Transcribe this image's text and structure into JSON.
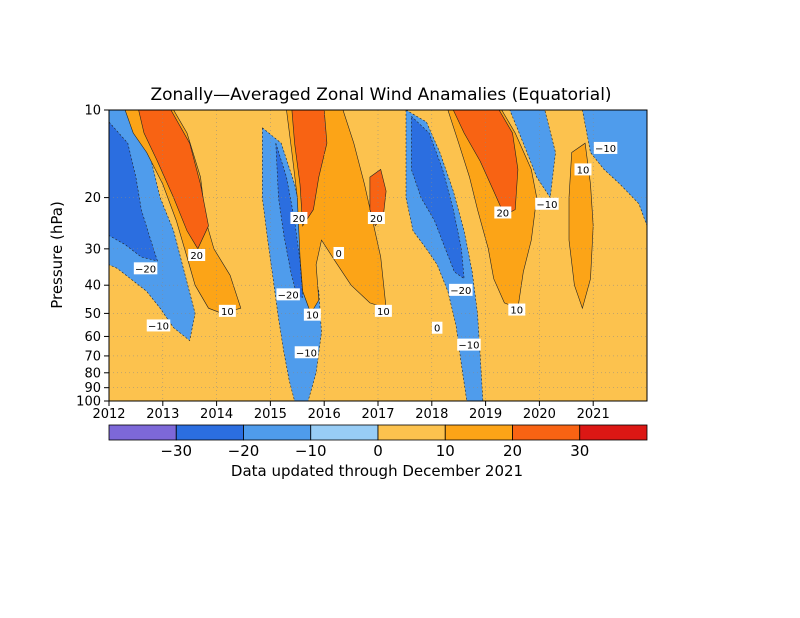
{
  "chart_data": {
    "type": "heatmap",
    "title": "Zonally—Averaged Zonal Wind Anamalies (Equatorial)",
    "ylabel": "Pressure (hPa)",
    "xlabel": "",
    "y_scale": "log",
    "y_axis_reversed": true,
    "x_ticks": [
      "2012",
      "2013",
      "2014",
      "2015",
      "2016",
      "2017",
      "2018",
      "2019",
      "2020",
      "2021"
    ],
    "x_range": [
      2012.0,
      2022.0
    ],
    "y_ticks": [
      10,
      20,
      30,
      40,
      50,
      60,
      70,
      80,
      90,
      100
    ],
    "y_range": [
      10,
      100
    ],
    "grid": true,
    "colorbar": {
      "levels": [
        -40,
        -30,
        -20,
        -10,
        0,
        10,
        20,
        30,
        40
      ],
      "tick_labels": [
        "−30",
        "−20",
        "−10",
        "0",
        "10",
        "20",
        "30"
      ],
      "colors": [
        "#7d68d8",
        "#2b6ee0",
        "#4f9cec",
        "#98cdf6",
        "#fcc24e",
        "#fca417",
        "#f86313",
        "#dc1714"
      ],
      "note": "Data updated through December 2021"
    },
    "contour_labels": [
      {
        "text": "−20",
        "year": 2012.68,
        "p": 35
      },
      {
        "text": "−10",
        "year": 2012.92,
        "p": 55
      },
      {
        "text": "20",
        "year": 2013.63,
        "p": 31.5
      },
      {
        "text": "10",
        "year": 2014.2,
        "p": 49
      },
      {
        "text": "−20",
        "year": 2015.33,
        "p": 43
      },
      {
        "text": "20",
        "year": 2015.53,
        "p": 23.5
      },
      {
        "text": "−10",
        "year": 2015.67,
        "p": 68
      },
      {
        "text": "10",
        "year": 2015.78,
        "p": 50.5
      },
      {
        "text": "0",
        "year": 2016.27,
        "p": 31
      },
      {
        "text": "20",
        "year": 2016.97,
        "p": 23.5
      },
      {
        "text": "10",
        "year": 2017.1,
        "p": 49
      },
      {
        "text": "0",
        "year": 2018.1,
        "p": 56
      },
      {
        "text": "−20",
        "year": 2018.54,
        "p": 41.5
      },
      {
        "text": "−10",
        "year": 2018.69,
        "p": 64
      },
      {
        "text": "20",
        "year": 2019.32,
        "p": 22.5
      },
      {
        "text": "10",
        "year": 2019.58,
        "p": 48.5
      },
      {
        "text": "−10",
        "year": 2020.14,
        "p": 21
      },
      {
        "text": "10",
        "year": 2020.81,
        "p": 16
      },
      {
        "text": "−10",
        "year": 2021.23,
        "p": 13.5
      }
    ],
    "bands": [
      {
        "value_range": [
          -20,
          -10
        ],
        "vertices": [
          [
            2012.0,
            10
          ],
          [
            2012.55,
            10
          ],
          [
            2012.75,
            14
          ],
          [
            2012.95,
            20
          ],
          [
            2013.2,
            26
          ],
          [
            2013.4,
            36
          ],
          [
            2013.6,
            50
          ],
          [
            2013.5,
            62
          ],
          [
            2013.2,
            56
          ],
          [
            2012.95,
            48
          ],
          [
            2012.7,
            42
          ],
          [
            2012.4,
            38
          ],
          [
            2012.15,
            35
          ],
          [
            2012.0,
            34
          ]
        ]
      },
      {
        "value_range": [
          -30,
          -20
        ],
        "vertices": [
          [
            2012.0,
            11
          ],
          [
            2012.35,
            13
          ],
          [
            2012.5,
            17
          ],
          [
            2012.6,
            22
          ],
          [
            2012.75,
            27
          ],
          [
            2012.9,
            33
          ],
          [
            2012.6,
            32
          ],
          [
            2012.3,
            29
          ],
          [
            2012.0,
            27
          ]
        ]
      },
      {
        "value_range": [
          -20,
          -10
        ],
        "vertices": [
          [
            2014.85,
            11.5
          ],
          [
            2015.2,
            13
          ],
          [
            2015.45,
            18
          ],
          [
            2015.6,
            24
          ],
          [
            2015.75,
            32
          ],
          [
            2015.9,
            42
          ],
          [
            2015.95,
            58
          ],
          [
            2015.85,
            80
          ],
          [
            2015.7,
            100
          ],
          [
            2015.45,
            100
          ],
          [
            2015.35,
            85
          ],
          [
            2015.25,
            68
          ],
          [
            2015.15,
            52
          ],
          [
            2015.05,
            38
          ],
          [
            2014.95,
            28
          ],
          [
            2014.85,
            20
          ]
        ]
      },
      {
        "value_range": [
          -30,
          -20
        ],
        "vertices": [
          [
            2015.1,
            13
          ],
          [
            2015.3,
            17
          ],
          [
            2015.45,
            24
          ],
          [
            2015.55,
            33
          ],
          [
            2015.6,
            44
          ],
          [
            2015.5,
            44
          ],
          [
            2015.38,
            36
          ],
          [
            2015.25,
            27
          ],
          [
            2015.15,
            20
          ]
        ]
      },
      {
        "value_range": [
          -20,
          -10
        ],
        "vertices": [
          [
            2017.52,
            10
          ],
          [
            2017.9,
            11
          ],
          [
            2018.15,
            14
          ],
          [
            2018.4,
            19
          ],
          [
            2018.6,
            26
          ],
          [
            2018.75,
            36
          ],
          [
            2018.85,
            50
          ],
          [
            2018.9,
            70
          ],
          [
            2018.95,
            100
          ],
          [
            2018.65,
            100
          ],
          [
            2018.55,
            75
          ],
          [
            2018.45,
            55
          ],
          [
            2018.3,
            42
          ],
          [
            2018.1,
            34
          ],
          [
            2017.9,
            30
          ],
          [
            2017.65,
            26
          ],
          [
            2017.52,
            20
          ]
        ]
      },
      {
        "value_range": [
          -30,
          -20
        ],
        "vertices": [
          [
            2017.62,
            10.5
          ],
          [
            2017.95,
            12
          ],
          [
            2018.2,
            16
          ],
          [
            2018.4,
            22
          ],
          [
            2018.55,
            30
          ],
          [
            2018.6,
            38
          ],
          [
            2018.42,
            36
          ],
          [
            2018.25,
            30
          ],
          [
            2018.05,
            24
          ],
          [
            2017.8,
            20
          ],
          [
            2017.62,
            16
          ]
        ]
      },
      {
        "value_range": [
          -20,
          -10
        ],
        "vertices": [
          [
            2019.45,
            10
          ],
          [
            2020.1,
            10
          ],
          [
            2020.3,
            14
          ],
          [
            2020.2,
            20
          ],
          [
            2019.95,
            17
          ],
          [
            2019.7,
            13
          ]
        ]
      },
      {
        "value_range": [
          -20,
          -10
        ],
        "vertices": [
          [
            2020.8,
            10
          ],
          [
            2022.0,
            10
          ],
          [
            2022.0,
            25
          ],
          [
            2021.85,
            21
          ],
          [
            2021.5,
            18
          ],
          [
            2021.2,
            16
          ],
          [
            2020.95,
            14
          ]
        ]
      },
      {
        "value_range": [
          10,
          20
        ],
        "vertices": [
          [
            2012.3,
            10
          ],
          [
            2013.2,
            10
          ],
          [
            2013.45,
            12
          ],
          [
            2013.7,
            17
          ],
          [
            2013.8,
            24
          ],
          [
            2013.95,
            30
          ],
          [
            2014.25,
            37
          ],
          [
            2014.45,
            48
          ],
          [
            2014.1,
            50
          ],
          [
            2013.85,
            48
          ],
          [
            2013.6,
            40
          ],
          [
            2013.45,
            32
          ],
          [
            2013.25,
            24
          ],
          [
            2013.0,
            18
          ],
          [
            2012.7,
            14
          ],
          [
            2012.45,
            12
          ]
        ]
      },
      {
        "value_range": [
          20,
          30
        ],
        "vertices": [
          [
            2012.55,
            10
          ],
          [
            2013.15,
            10
          ],
          [
            2013.5,
            13
          ],
          [
            2013.7,
            18
          ],
          [
            2013.85,
            25
          ],
          [
            2013.65,
            30
          ],
          [
            2013.45,
            26
          ],
          [
            2013.2,
            20
          ],
          [
            2012.9,
            15
          ],
          [
            2012.65,
            12
          ]
        ]
      },
      {
        "value_range": [
          10,
          20
        ],
        "vertices": [
          [
            2015.3,
            10
          ],
          [
            2016.35,
            10
          ],
          [
            2016.55,
            13
          ],
          [
            2016.75,
            18
          ],
          [
            2016.9,
            24
          ],
          [
            2017.05,
            32
          ],
          [
            2017.15,
            48
          ],
          [
            2016.85,
            46
          ],
          [
            2016.5,
            40
          ],
          [
            2016.2,
            33
          ],
          [
            2015.95,
            28
          ],
          [
            2015.85,
            34
          ],
          [
            2015.9,
            45
          ],
          [
            2015.75,
            50
          ],
          [
            2015.6,
            42
          ],
          [
            2015.55,
            32
          ],
          [
            2015.5,
            20
          ],
          [
            2015.4,
            14
          ]
        ]
      },
      {
        "value_range": [
          20,
          30
        ],
        "vertices": [
          [
            2015.4,
            10
          ],
          [
            2016.0,
            10
          ],
          [
            2016.05,
            13
          ],
          [
            2015.9,
            17
          ],
          [
            2015.8,
            22
          ],
          [
            2015.6,
            25
          ],
          [
            2015.55,
            18
          ],
          [
            2015.45,
            13
          ]
        ]
      },
      {
        "value_range": [
          20,
          30
        ],
        "vertices": [
          [
            2016.85,
            17
          ],
          [
            2017.05,
            16
          ],
          [
            2017.15,
            19
          ],
          [
            2017.1,
            23
          ],
          [
            2016.95,
            25
          ],
          [
            2016.85,
            22
          ]
        ]
      },
      {
        "value_range": [
          10,
          20
        ],
        "vertices": [
          [
            2018.3,
            10
          ],
          [
            2019.3,
            10
          ],
          [
            2019.55,
            12
          ],
          [
            2019.85,
            16
          ],
          [
            2019.95,
            20
          ],
          [
            2019.85,
            28
          ],
          [
            2019.7,
            36
          ],
          [
            2019.6,
            48
          ],
          [
            2019.35,
            46
          ],
          [
            2019.15,
            38
          ],
          [
            2019.05,
            30
          ],
          [
            2018.85,
            22
          ],
          [
            2018.7,
            17
          ],
          [
            2018.5,
            13
          ]
        ]
      },
      {
        "value_range": [
          20,
          30
        ],
        "vertices": [
          [
            2018.4,
            10
          ],
          [
            2019.25,
            10
          ],
          [
            2019.5,
            12
          ],
          [
            2019.6,
            16
          ],
          [
            2019.55,
            22
          ],
          [
            2019.35,
            23
          ],
          [
            2019.15,
            19
          ],
          [
            2018.9,
            15
          ],
          [
            2018.6,
            12
          ]
        ]
      },
      {
        "value_range": [
          10,
          20
        ],
        "vertices": [
          [
            2020.6,
            14
          ],
          [
            2020.85,
            13
          ],
          [
            2020.95,
            18
          ],
          [
            2021.0,
            25
          ],
          [
            2020.95,
            38
          ],
          [
            2020.8,
            48
          ],
          [
            2020.65,
            40
          ],
          [
            2020.55,
            28
          ],
          [
            2020.55,
            20
          ]
        ]
      }
    ]
  }
}
